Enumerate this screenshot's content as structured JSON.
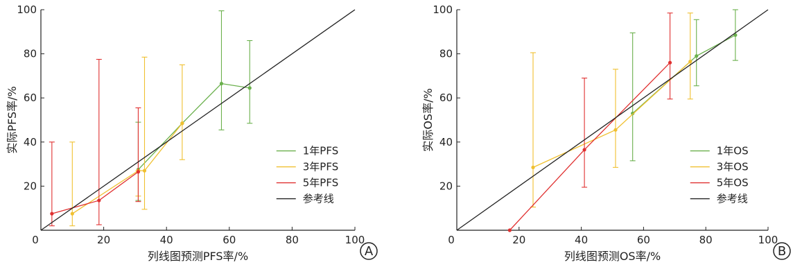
{
  "chart_data": [
    {
      "type": "line",
      "panel_label": "A",
      "xlabel": "列线图预测PFS率/%",
      "ylabel": "实际PFS率/%",
      "xlim": [
        0,
        100
      ],
      "ylim": [
        0,
        100
      ],
      "xticks": [
        "0",
        "20",
        "40",
        "60",
        "80",
        "100"
      ],
      "yticks": [
        "20",
        "40",
        "60",
        "80",
        "100"
      ],
      "legend_position": "bottom-right",
      "colors": {
        "green": "#6ab04c",
        "yellow": "#f0c030",
        "red": "#e03030",
        "ref": "#222222"
      },
      "series": [
        {
          "name": "1年PFS",
          "color": "#6ab04c",
          "points": [
            {
              "x": 31,
              "y": 27.5,
              "lo": 13.5,
              "hi": 49
            },
            {
              "x": 45,
              "y": 48.5,
              "lo": 48.5,
              "hi": 48.5
            },
            {
              "x": 57.5,
              "y": 66.5,
              "lo": 45.5,
              "hi": 99.5
            },
            {
              "x": 66.5,
              "y": 64.5,
              "lo": 48.5,
              "hi": 86
            }
          ]
        },
        {
          "name": "3年PFS",
          "color": "#f0c030",
          "points": [
            {
              "x": 10,
              "y": 7.5,
              "lo": 2,
              "hi": 40
            },
            {
              "x": 31,
              "y": 27,
              "lo": 15.5,
              "hi": 27
            },
            {
              "x": 33,
              "y": 27,
              "lo": 9.5,
              "hi": 78.5
            },
            {
              "x": 45,
              "y": 48.5,
              "lo": 32,
              "hi": 75
            }
          ]
        },
        {
          "name": "5年PFS",
          "color": "#e03030",
          "points": [
            {
              "x": 3.5,
              "y": 7.5,
              "lo": 2,
              "hi": 40
            },
            {
              "x": 18.5,
              "y": 13.5,
              "lo": 2.5,
              "hi": 77.5
            },
            {
              "x": 31,
              "y": 26.5,
              "lo": 13,
              "hi": 55.5
            }
          ]
        },
        {
          "name": "参考线",
          "color": "#222222",
          "reference": true,
          "points": [
            {
              "x": 0,
              "y": 0
            },
            {
              "x": 100,
              "y": 100
            }
          ]
        }
      ]
    },
    {
      "type": "line",
      "panel_label": "B",
      "xlabel": "列线图预测OS率/%",
      "ylabel": "实际OS率/%",
      "xlim": [
        0,
        100
      ],
      "ylim": [
        0,
        100
      ],
      "xticks": [
        "0",
        "20",
        "40",
        "60",
        "80",
        "100"
      ],
      "yticks": [
        "20",
        "40",
        "60",
        "80",
        "100"
      ],
      "legend_position": "bottom-right",
      "colors": {
        "green": "#6ab04c",
        "yellow": "#f0c030",
        "red": "#e03030",
        "ref": "#222222"
      },
      "series": [
        {
          "name": "1年OS",
          "color": "#6ab04c",
          "points": [
            {
              "x": 56.5,
              "y": 53,
              "lo": 31.5,
              "hi": 89.5
            },
            {
              "x": 77,
              "y": 79,
              "lo": 65.5,
              "hi": 95.5
            },
            {
              "x": 89.5,
              "y": 88.5,
              "lo": 77,
              "hi": 100
            }
          ]
        },
        {
          "name": "3年OS",
          "color": "#f0c030",
          "points": [
            {
              "x": 24.5,
              "y": 28.5,
              "lo": 10.5,
              "hi": 80.5
            },
            {
              "x": 51,
              "y": 45.5,
              "lo": 28.5,
              "hi": 73
            },
            {
              "x": 75,
              "y": 76.5,
              "lo": 59.5,
              "hi": 98.5
            }
          ]
        },
        {
          "name": "5年OS",
          "color": "#e03030",
          "points": [
            {
              "x": 17,
              "y": 0,
              "lo": 0,
              "hi": 0
            },
            {
              "x": 41,
              "y": 36.5,
              "lo": 19.5,
              "hi": 69
            },
            {
              "x": 68.5,
              "y": 76,
              "lo": 59.5,
              "hi": 98.5
            }
          ]
        },
        {
          "name": "参考线",
          "color": "#222222",
          "reference": true,
          "points": [
            {
              "x": 0,
              "y": 0
            },
            {
              "x": 100,
              "y": 100
            }
          ]
        }
      ]
    }
  ]
}
